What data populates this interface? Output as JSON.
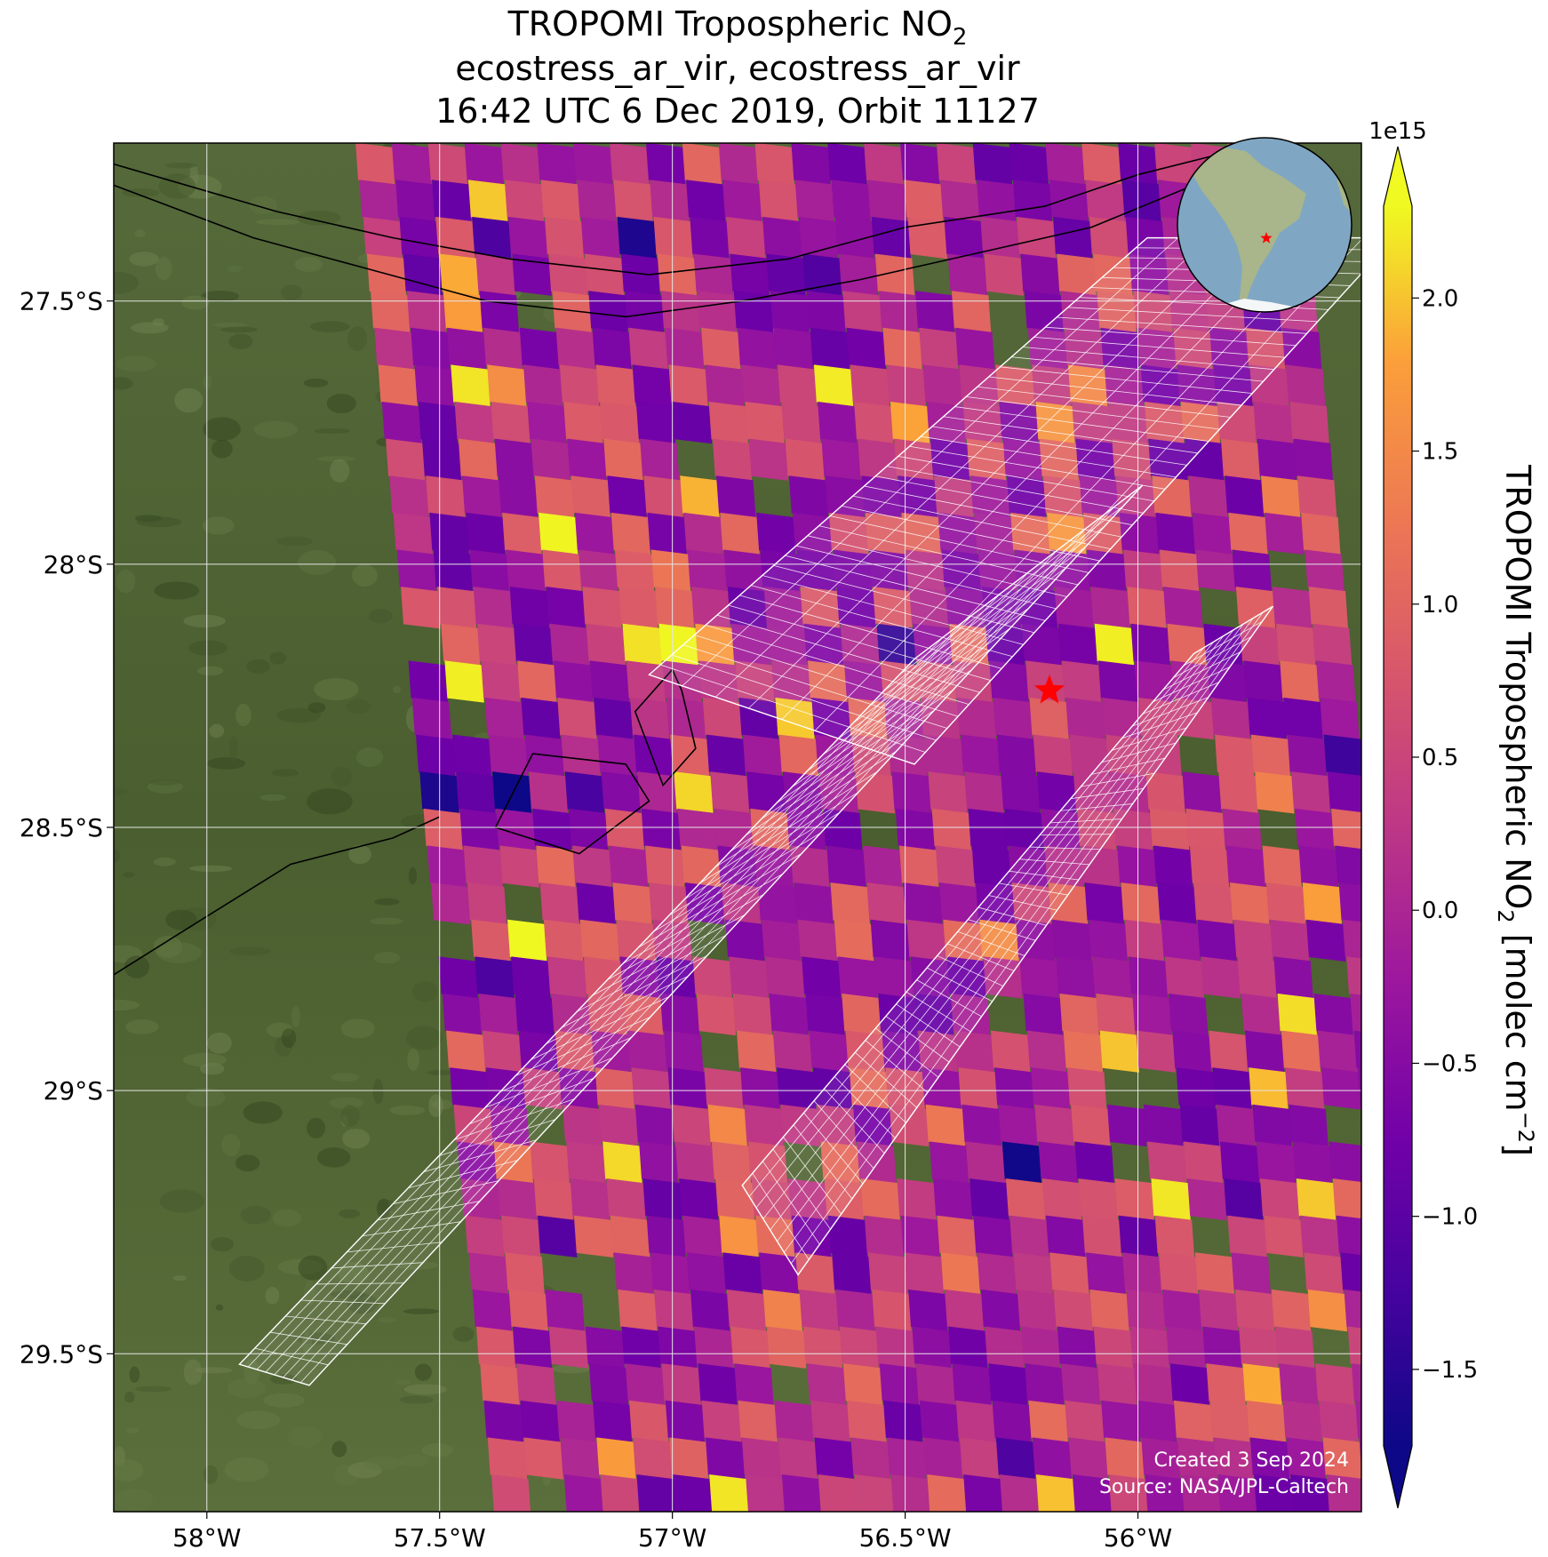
{
  "title": {
    "line1_main": "TROPOMI Tropospheric NO",
    "line1_sub": "2",
    "line2": "ecostress_ar_vir, ecostress_ar_vir",
    "line3": "16:42 UTC 6 Dec 2019, Orbit 11127"
  },
  "credits": {
    "created": "Created 3 Sep 2024",
    "source": "Source: NASA/JPL-Caltech"
  },
  "colors": {
    "land": "#4f6332",
    "grid": "#e6e6e6",
    "footprint_outline": "#ffffff",
    "river_outline": "#000000",
    "marker": "#ff0000",
    "ocean": "#7fa7c4",
    "continent": "#a9b58a"
  },
  "chart_data": {
    "type": "heatmap",
    "colormap": "plasma",
    "x_range": [
      -58.2,
      -55.52
    ],
    "y_range": [
      -29.8,
      -27.2
    ],
    "xticks": [
      -58,
      -57.5,
      -57,
      -56.5,
      -56
    ],
    "xtick_labels": [
      "58°W",
      "57.5°W",
      "57°W",
      "56.5°W",
      "56°W"
    ],
    "yticks": [
      -27.5,
      -28,
      -28.5,
      -29,
      -29.5
    ],
    "ytick_labels": [
      "27.5°S",
      "28°S",
      "28.5°S",
      "29°S",
      "29.5°S"
    ],
    "grid": true,
    "colorbar": {
      "label_main": "TROPOMI Tropospheric NO",
      "label_sub": "2",
      "label_rest": " [molec cm",
      "label_sup": "−2",
      "label_end": "]",
      "multiplier": "1e15",
      "range": [
        -1.75,
        2.3
      ],
      "extend": "both",
      "ticks": [
        2.0,
        1.5,
        1.0,
        0.5,
        0.0,
        -0.5,
        -1.0,
        -1.5
      ],
      "tick_labels": [
        "2.0",
        "1.5",
        "1.0",
        "0.5",
        "0.0",
        "−0.5",
        "−1.0",
        "−1.5"
      ]
    },
    "swath_edge": [
      [
        -57.68,
        -27.2
      ],
      [
        -57.38,
        -29.8
      ]
    ],
    "target": {
      "lon": -56.19,
      "lat": -28.24
    },
    "inset_globe": {
      "marker_label": "target location"
    },
    "footprints": [
      {
        "corners": [
          [
            -56.48,
            -28.38
          ],
          [
            -57.05,
            -28.21
          ],
          [
            -55.98,
            -27.38
          ],
          [
            -55.45,
            -27.38
          ]
        ]
      },
      {
        "corners": [
          [
            -57.78,
            -29.56
          ],
          [
            -57.93,
            -29.52
          ],
          [
            -56.48,
            -28.18
          ],
          [
            -55.99,
            -27.85
          ]
        ]
      },
      {
        "corners": [
          [
            -56.73,
            -29.35
          ],
          [
            -56.85,
            -29.18
          ],
          [
            -55.88,
            -28.17
          ],
          [
            -55.71,
            -28.08
          ]
        ]
      }
    ],
    "rivers": [
      [
        [
          -58.2,
          -27.24
        ],
        [
          -57.85,
          -27.33
        ],
        [
          -57.6,
          -27.38
        ],
        [
          -57.35,
          -27.42
        ],
        [
          -57.05,
          -27.45
        ],
        [
          -56.75,
          -27.42
        ],
        [
          -56.5,
          -27.36
        ],
        [
          -56.2,
          -27.32
        ],
        [
          -56.0,
          -27.26
        ],
        [
          -55.82,
          -27.22
        ]
      ],
      [
        [
          -58.2,
          -27.28
        ],
        [
          -57.9,
          -27.38
        ],
        [
          -57.65,
          -27.44
        ],
        [
          -57.4,
          -27.5
        ],
        [
          -57.1,
          -27.53
        ],
        [
          -56.85,
          -27.5
        ],
        [
          -56.6,
          -27.46
        ],
        [
          -56.35,
          -27.41
        ],
        [
          -56.1,
          -27.36
        ],
        [
          -55.88,
          -27.28
        ]
      ],
      [
        [
          -57.0,
          -28.2
        ],
        [
          -57.08,
          -28.28
        ],
        [
          -57.02,
          -28.42
        ],
        [
          -56.95,
          -28.35
        ],
        [
          -56.98,
          -28.24
        ],
        [
          -57.0,
          -28.2
        ]
      ],
      [
        [
          -57.3,
          -28.36
        ],
        [
          -57.38,
          -28.5
        ],
        [
          -57.2,
          -28.55
        ],
        [
          -57.05,
          -28.45
        ],
        [
          -57.1,
          -28.38
        ],
        [
          -57.3,
          -28.36
        ]
      ],
      [
        [
          -58.2,
          -28.78
        ],
        [
          -58.02,
          -28.68
        ],
        [
          -57.82,
          -28.57
        ],
        [
          -57.6,
          -28.52
        ],
        [
          -57.5,
          -28.48
        ]
      ]
    ]
  }
}
